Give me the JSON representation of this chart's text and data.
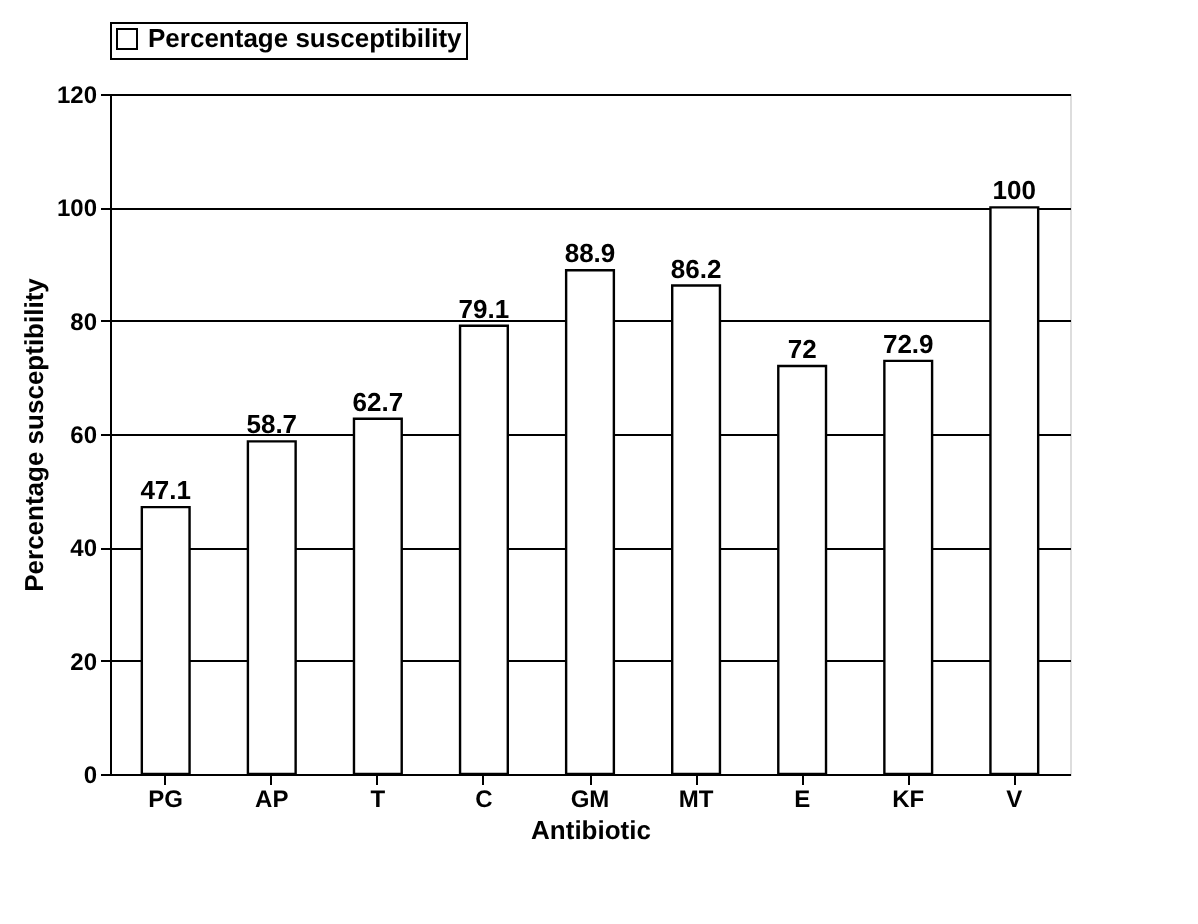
{
  "chart_data": {
    "type": "bar",
    "xlabel": "Antibiotic",
    "ylabel": "Percentage susceptibility",
    "categories": [
      "PG",
      "AP",
      "T",
      "C",
      "GM",
      "MT",
      "E",
      "KF",
      "V"
    ],
    "series": [
      {
        "name": "Percentage susceptibility",
        "color": "#ffffff",
        "values": [
          47.1,
          58.7,
          62.7,
          79.1,
          88.9,
          86.2,
          72,
          72.9,
          100
        ]
      }
    ],
    "ylim": [
      0,
      120
    ],
    "yticks": [
      0,
      20,
      40,
      60,
      80,
      100,
      120
    ],
    "grid": "y",
    "legend": "top",
    "data_labels": true
  }
}
